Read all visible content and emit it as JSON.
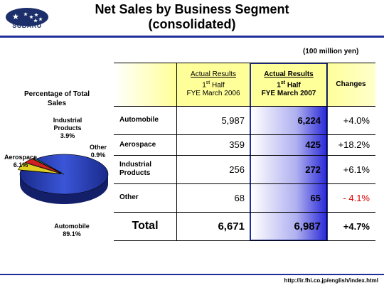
{
  "brand": {
    "name": "SUBARU"
  },
  "title": {
    "line1": "Net Sales by Business Segment",
    "line2": "(consolidated)"
  },
  "unit_note": "(100 million yen)",
  "pie": {
    "title_line1": "Percentage of Total",
    "title_line2": "Sales",
    "labels": {
      "industrial_name1": "Industrial",
      "industrial_name2": "Products",
      "industrial_pct": "3.9%",
      "other_name": "Other",
      "other_pct": "0.9%",
      "aerospace_name": "Aerospace",
      "aerospace_pct": "6.1%",
      "automobile_name": "Automobile",
      "automobile_pct": "89.1%"
    }
  },
  "table": {
    "header": {
      "prev_line1": "Actual Results",
      "prev_line2_num": "1",
      "prev_line2_sup": "st",
      "prev_line2_rest": " Half",
      "prev_line3": "FYE March 2006",
      "curr_line1": "Actual Results",
      "curr_line2_num": "1",
      "curr_line2_sup": "st",
      "curr_line2_rest": " Half",
      "curr_line3": "FYE March 2007",
      "changes": "Changes"
    },
    "rows": [
      {
        "segment": "Automobile",
        "prev": "5,987",
        "curr": "6,224",
        "change": "+4.0%"
      },
      {
        "segment": "Aerospace",
        "prev": "359",
        "curr": "425",
        "change": "+18.2%"
      },
      {
        "segment_line1": "Industrial",
        "segment_line2": "Products",
        "prev": "256",
        "curr": "272",
        "change": "+6.1%"
      },
      {
        "segment": "Other",
        "prev": "68",
        "curr": "65",
        "change": "- 4.1%"
      }
    ],
    "total": {
      "segment": "Total",
      "prev": "6,671",
      "curr": "6,987",
      "change": "+4.7%"
    }
  },
  "footer_url": "http://ir.fhi.co.jp/english/index.html",
  "colors": {
    "header_yellow": "#ffff99",
    "highlight_blue": "#2a2ad8",
    "border_blue": "#1f2f9a",
    "negative_red": "#e00000",
    "pie_automobile": "#2b3fb5",
    "pie_aerospace": "#e0d020",
    "pie_industrial": "#d02020",
    "pie_other": "#2a8a5a"
  },
  "chart_data": {
    "type": "pie",
    "title": "Percentage of Total Sales",
    "categories": [
      "Automobile",
      "Aerospace",
      "Industrial Products",
      "Other"
    ],
    "values": [
      89.1,
      6.1,
      3.9,
      0.9
    ],
    "unit": "%"
  }
}
